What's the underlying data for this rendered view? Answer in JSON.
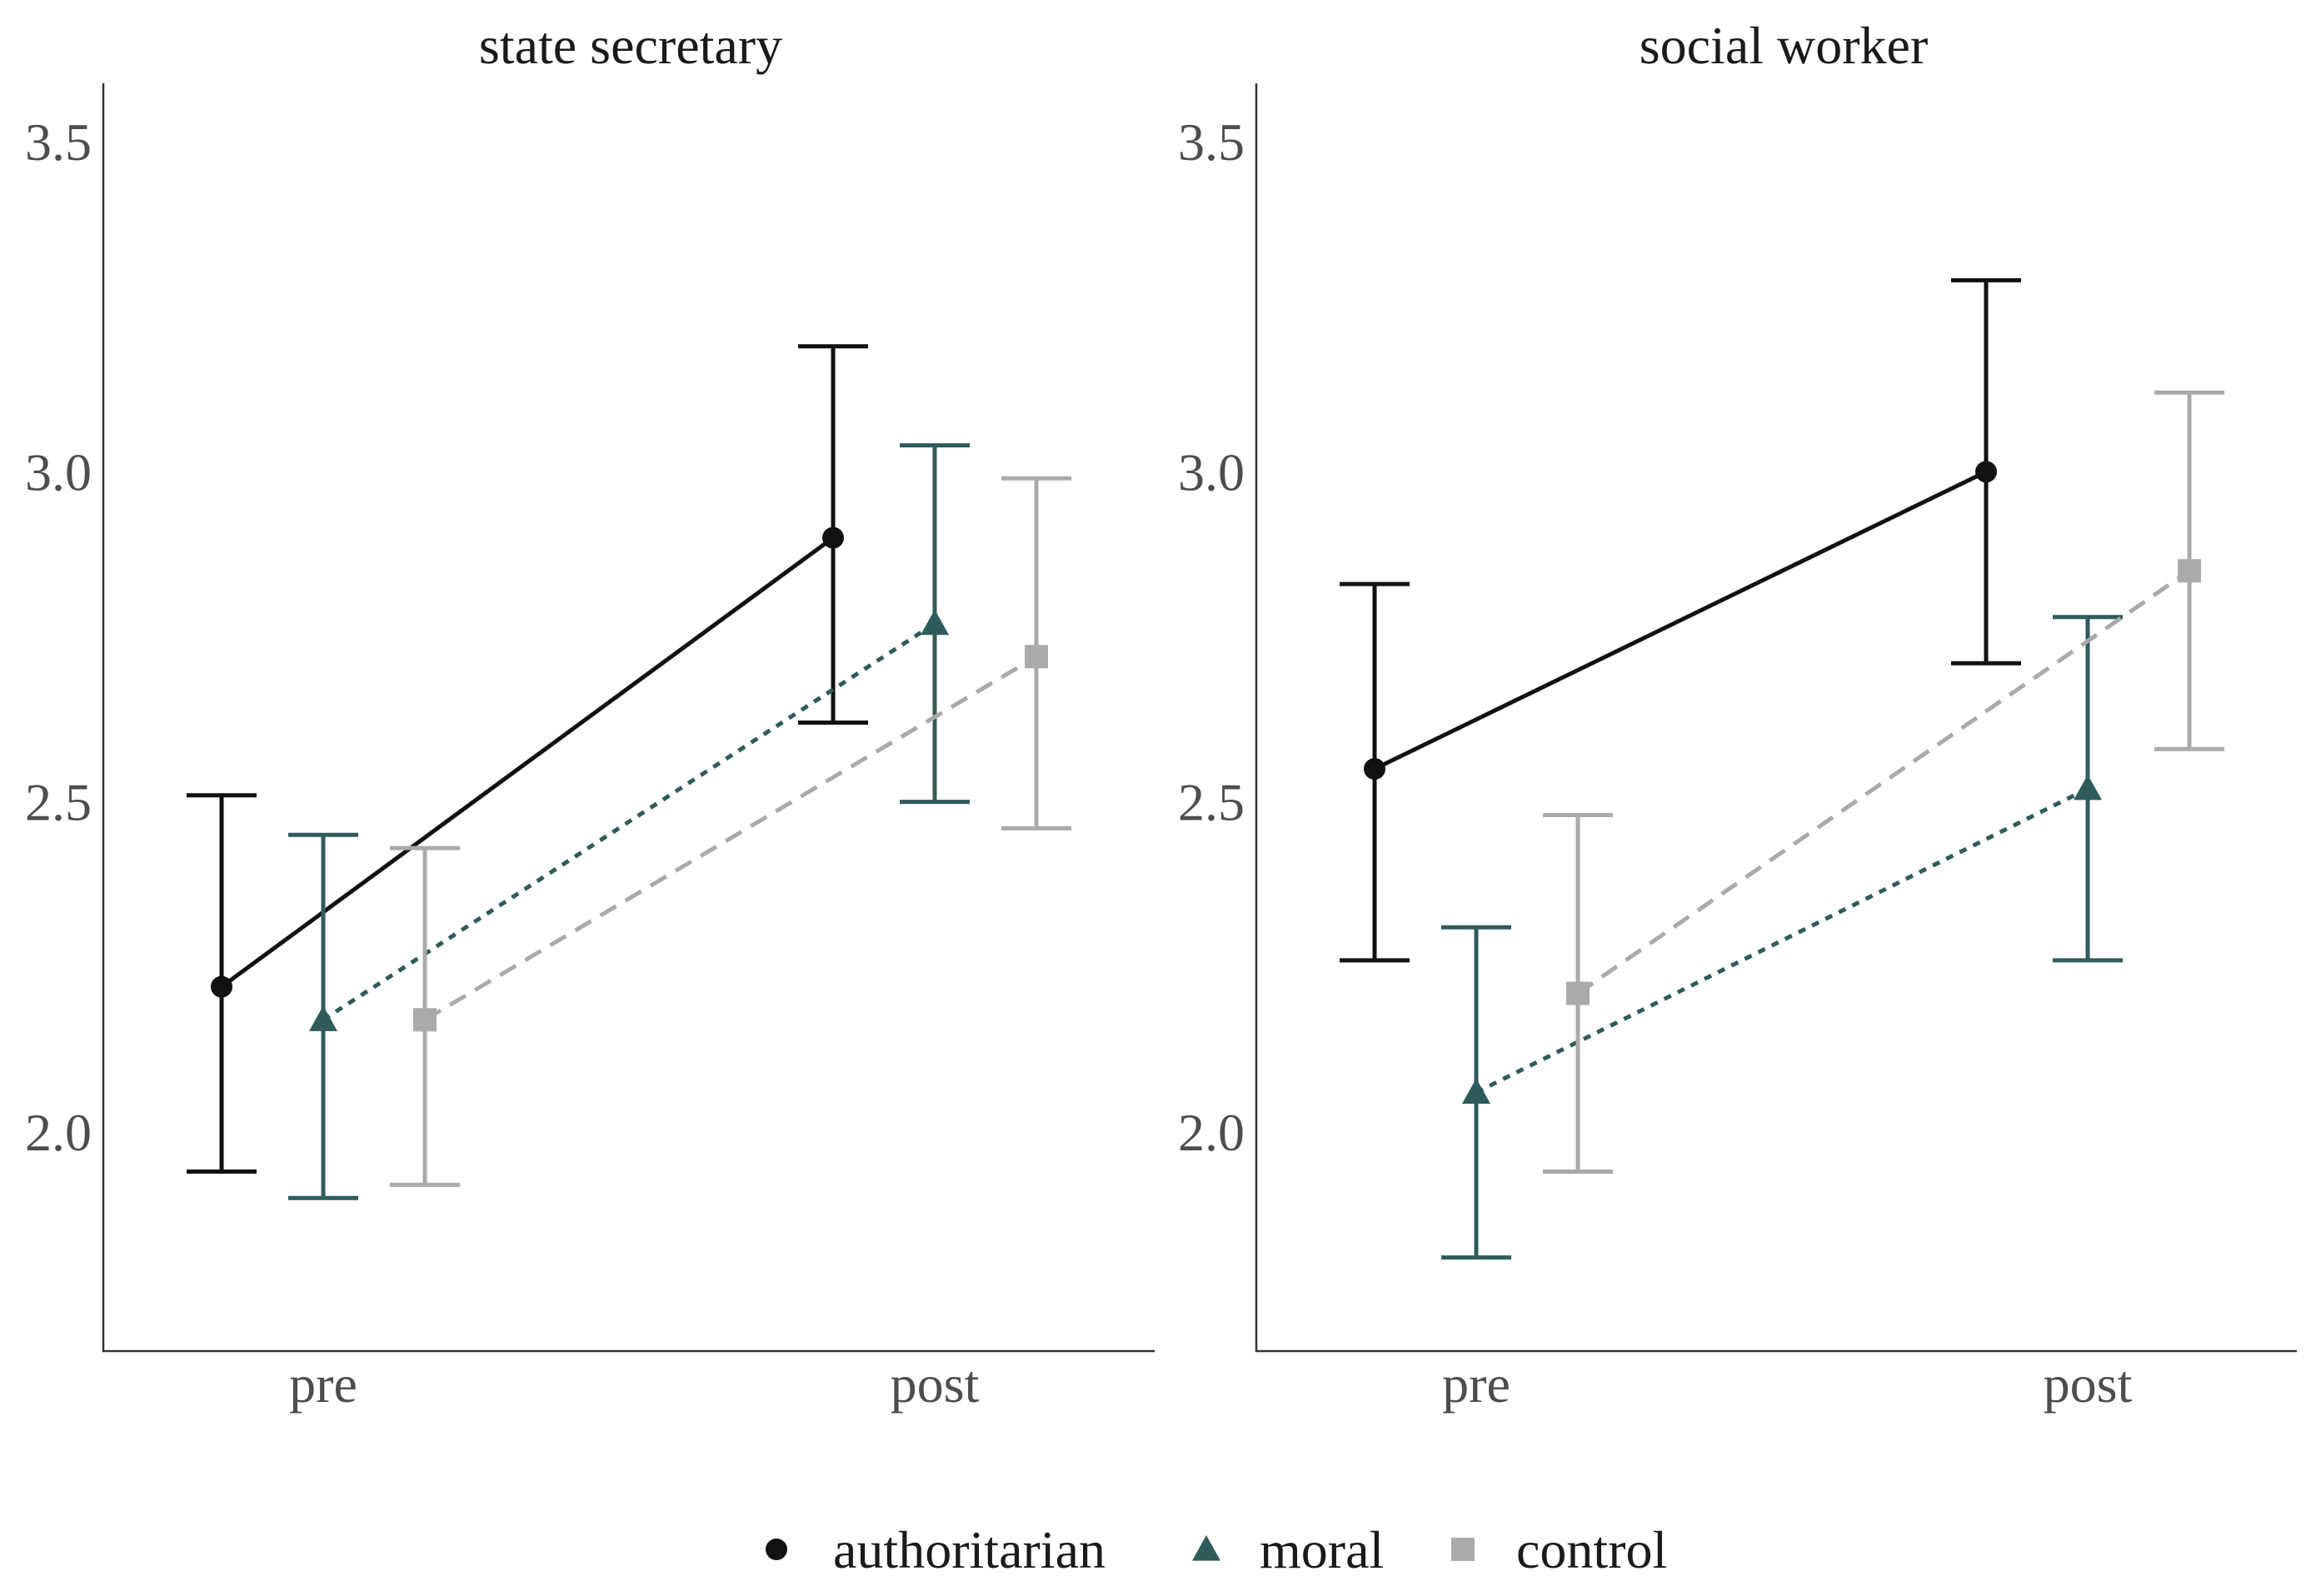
{
  "chart_data": [
    {
      "type": "line",
      "title": "state secretary",
      "xlabel": "",
      "ylabel": "",
      "categories": [
        "pre",
        "post"
      ],
      "y_ticks": [
        2.0,
        2.5,
        3.0,
        3.5
      ],
      "y_tick_labels": [
        "2.0",
        "2.5",
        "3.0",
        "3.5"
      ],
      "ylim": [
        1.67,
        3.6
      ],
      "grid": false,
      "series": [
        {
          "name": "authoritarian",
          "values": [
            2.22,
            2.9
          ],
          "lower": [
            1.94,
            2.62
          ],
          "upper": [
            2.51,
            3.19
          ]
        },
        {
          "name": "moral",
          "values": [
            2.17,
            2.77
          ],
          "lower": [
            1.9,
            2.5
          ],
          "upper": [
            2.45,
            3.04
          ]
        },
        {
          "name": "control",
          "values": [
            2.17,
            2.72
          ],
          "lower": [
            1.92,
            2.46
          ],
          "upper": [
            2.43,
            2.99
          ]
        }
      ]
    },
    {
      "type": "line",
      "title": "social worker",
      "xlabel": "",
      "ylabel": "",
      "categories": [
        "pre",
        "post"
      ],
      "y_ticks": [
        2.0,
        2.5,
        3.0,
        3.5
      ],
      "y_tick_labels": [
        "2.0",
        "2.5",
        "3.0",
        "3.5"
      ],
      "ylim": [
        1.67,
        3.6
      ],
      "grid": false,
      "series": [
        {
          "name": "authoritarian",
          "values": [
            2.55,
            3.0
          ],
          "lower": [
            2.26,
            2.71
          ],
          "upper": [
            2.83,
            3.29
          ]
        },
        {
          "name": "moral",
          "values": [
            2.06,
            2.52
          ],
          "lower": [
            1.81,
            2.26
          ],
          "upper": [
            2.31,
            2.78
          ]
        },
        {
          "name": "control",
          "values": [
            2.21,
            2.85
          ],
          "lower": [
            1.94,
            2.58
          ],
          "upper": [
            2.48,
            3.12
          ]
        }
      ]
    }
  ],
  "legend": {
    "position": "bottom",
    "items": [
      {
        "label": "authoritarian",
        "marker": "circle-icon",
        "line": "solid"
      },
      {
        "label": "moral",
        "marker": "triangle-icon",
        "line": "dotted"
      },
      {
        "label": "control",
        "marker": "square-icon",
        "line": "dashed"
      }
    ]
  },
  "colors": {
    "authoritarian": "#111111",
    "moral": "#2f5b5b",
    "control": "#aaaaaa"
  }
}
